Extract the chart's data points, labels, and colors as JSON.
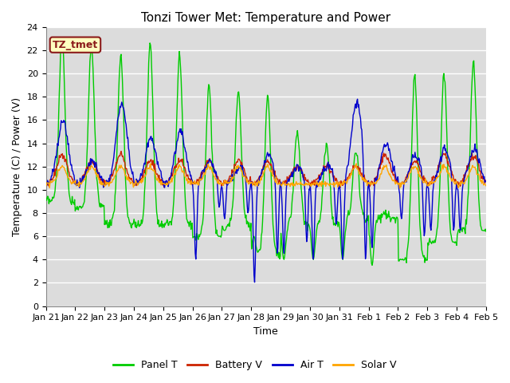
{
  "title": "Tonzi Tower Met: Temperature and Power",
  "xlabel": "Time",
  "ylabel": "Temperature (C) / Power (V)",
  "ylim": [
    0,
    24
  ],
  "yticks": [
    0,
    2,
    4,
    6,
    8,
    10,
    12,
    14,
    16,
    18,
    20,
    22,
    24
  ],
  "xtick_labels": [
    "Jan 21",
    "Jan 22",
    "Jan 23",
    "Jan 24",
    "Jan 25",
    "Jan 26",
    "Jan 27",
    "Jan 28",
    "Jan 29",
    "Jan 30",
    "Jan 31",
    "Feb 1",
    "Feb 2",
    "Feb 3",
    "Feb 4",
    "Feb 5"
  ],
  "label_box_text": "TZ_tmet",
  "label_box_bg": "#FFFFC0",
  "label_box_edge": "#8B1A1A",
  "label_box_text_color": "#8B1A1A",
  "plot_bg": "#DCDCDC",
  "fig_bg": "#FFFFFF",
  "grid_color": "#FFFFFF",
  "line_colors": {
    "panel": "#00CC00",
    "battery": "#CC2200",
    "air": "#0000CC",
    "solar": "#FFA500"
  },
  "line_labels": [
    "Panel T",
    "Battery V",
    "Air T",
    "Solar V"
  ],
  "legend_colors": [
    "#00CC00",
    "#CC2200",
    "#0000CC",
    "#FFA500"
  ],
  "title_fontsize": 11,
  "axis_fontsize": 9,
  "tick_fontsize": 8,
  "legend_fontsize": 9
}
